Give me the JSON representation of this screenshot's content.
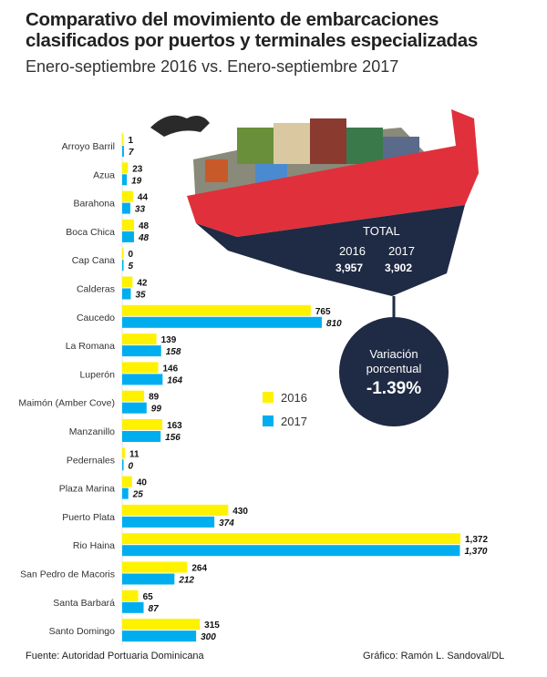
{
  "title": "Comparativo del movimiento de embarcaciones clasificados por puertos y terminales especializadas",
  "subtitle": "Enero-septiembre 2016 vs. Enero-septiembre 2017",
  "source": "Fuente: Autoridad Portuaria Dominicana",
  "credit": "Gráfico: Ramón L. Sandoval/DL",
  "total": {
    "label": "TOTAL",
    "y2016_label": "2016",
    "y2017_label": "2017",
    "v2016": "3,957",
    "v2017": "3,902"
  },
  "variation": {
    "label1": "Variación",
    "label2": "porcentual",
    "value": "-1.39%"
  },
  "colors": {
    "2016": "#fff200",
    "2017": "#00aeef",
    "ship_red": "#e0303b",
    "ship_navy": "#1f2a44"
  },
  "chart_data": {
    "type": "bar",
    "orientation": "horizontal",
    "legend": "center-right",
    "categories": [
      "Arroyo Barril",
      "Azua",
      "Barahona",
      "Boca Chica",
      "Cap Cana",
      "Calderas",
      "Caucedo",
      "La Romana",
      "Luperón",
      "Maimón (Amber Cove)",
      "Manzanillo",
      "Pedernales",
      "Plaza Marina",
      "Puerto Plata",
      "Rio Haina",
      "San Pedro de Macoris",
      "Santa Barbará",
      "Santo Domingo"
    ],
    "series": [
      {
        "name": "2016",
        "values": [
          1,
          23,
          44,
          48,
          0,
          42,
          765,
          139,
          146,
          89,
          163,
          11,
          40,
          430,
          1372,
          264,
          65,
          315
        ],
        "labels": [
          "1",
          "23",
          "44",
          "48",
          "0",
          "42",
          "765",
          "139",
          "146",
          "89",
          "163",
          "11",
          "40",
          "430",
          "1,372",
          "264",
          "65",
          "315"
        ]
      },
      {
        "name": "2017",
        "values": [
          7,
          19,
          33,
          48,
          5,
          35,
          810,
          158,
          164,
          99,
          156,
          0,
          25,
          374,
          1370,
          212,
          87,
          300
        ],
        "labels": [
          "7",
          "19",
          "33",
          "48",
          "5",
          "35",
          "810",
          "158",
          "164",
          "99",
          "156",
          "0",
          "25",
          "374",
          "1,370",
          "212",
          "87",
          "300"
        ]
      }
    ]
  }
}
